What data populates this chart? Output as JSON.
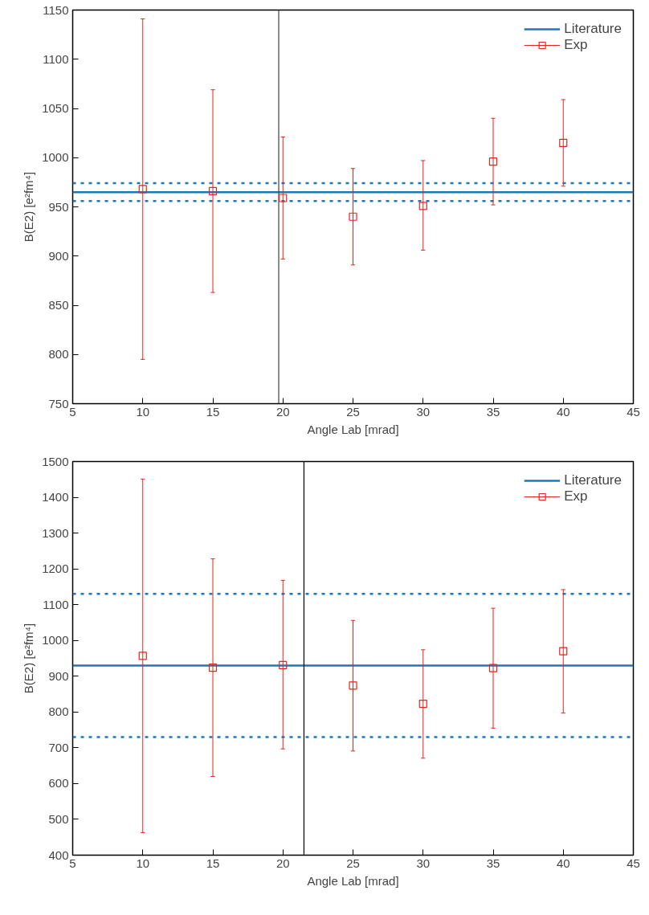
{
  "chart_data": [
    {
      "type": "scatter",
      "xlabel": "Angle Lab [mrad]",
      "ylabel": "B(E2) [e²fm⁴]",
      "x": [
        10,
        15,
        20,
        25,
        30,
        35,
        40
      ],
      "series": [
        {
          "name": "Exp",
          "color": "#e8231c",
          "marker": "square",
          "values": [
            968,
            966,
            959,
            940,
            951,
            996,
            1015
          ],
          "errors": [
            [
              795,
              1141
            ],
            [
              863,
              1069
            ],
            [
              897,
              1021
            ],
            [
              891,
              989
            ],
            [
              906,
              997
            ],
            [
              952,
              1040
            ],
            [
              971,
              1059
            ]
          ]
        }
      ],
      "ref_lines": [
        {
          "axis": "y",
          "value": 965,
          "label": "Literature",
          "color": "#1f77b4",
          "line_style": "solid"
        },
        {
          "axis": "y",
          "value": 974,
          "color": "#1f77b4",
          "line_style": "dashed"
        },
        {
          "axis": "y",
          "value": 956,
          "color": "#1f77b4",
          "line_style": "dashed"
        },
        {
          "axis": "x",
          "value": 19.7,
          "color": "#404040",
          "line_style": "solid"
        }
      ],
      "xlim": [
        5,
        45
      ],
      "xticks": [
        5,
        10,
        15,
        20,
        25,
        30,
        35,
        40,
        45
      ],
      "ylim": [
        750,
        1150
      ],
      "yticks": [
        750,
        800,
        850,
        900,
        950,
        1000,
        1050,
        1100,
        1150
      ],
      "grid": false,
      "legend": "top right"
    },
    {
      "type": "scatter",
      "xlabel": "Angle Lab [mrad]",
      "ylabel": "B(E2) [e²fm⁴]",
      "x": [
        10,
        15,
        20,
        25,
        30,
        35,
        40
      ],
      "series": [
        {
          "name": "Exp",
          "color": "#e8231c",
          "marker": "square",
          "values": [
            957,
            924,
            931,
            874,
            823,
            923,
            970
          ],
          "errors": [
            [
              463,
              1451
            ],
            [
              620,
              1228
            ],
            [
              697,
              1168
            ],
            [
              691,
              1056
            ],
            [
              671,
              974
            ],
            [
              755,
              1090
            ],
            [
              797,
              1142
            ]
          ]
        }
      ],
      "ref_lines": [
        {
          "axis": "y",
          "value": 930,
          "label": "Literature",
          "color": "#1f77b4",
          "line_style": "solid"
        },
        {
          "axis": "y",
          "value": 1130,
          "color": "#1f77b4",
          "line_style": "dashed"
        },
        {
          "axis": "y",
          "value": 730,
          "color": "#1f77b4",
          "line_style": "dashed"
        },
        {
          "axis": "x",
          "value": 21.5,
          "color": "#000000",
          "line_style": "solid"
        }
      ],
      "xlim": [
        5,
        45
      ],
      "xticks": [
        5,
        10,
        15,
        20,
        25,
        30,
        35,
        40,
        45
      ],
      "ylim": [
        400,
        1500
      ],
      "yticks": [
        400,
        500,
        600,
        700,
        800,
        900,
        1000,
        1100,
        1200,
        1300,
        1400,
        1500
      ],
      "grid": false,
      "legend": "top right"
    }
  ]
}
